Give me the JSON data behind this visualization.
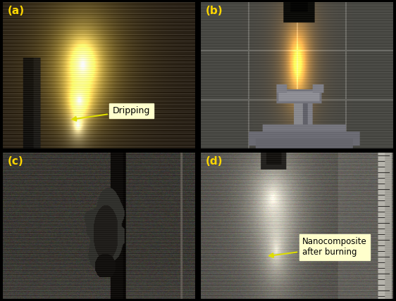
{
  "figure_width": 5.62,
  "figure_height": 4.28,
  "dpi": 100,
  "panel_labels": [
    "(a)",
    "(b)",
    "(c)",
    "(d)"
  ],
  "label_color": "#FFD700",
  "label_fontsize": 11,
  "label_fontweight": "bold",
  "border_color": "#000000",
  "border_linewidth": 1.5,
  "hspace": 0.02,
  "wspace": 0.02
}
